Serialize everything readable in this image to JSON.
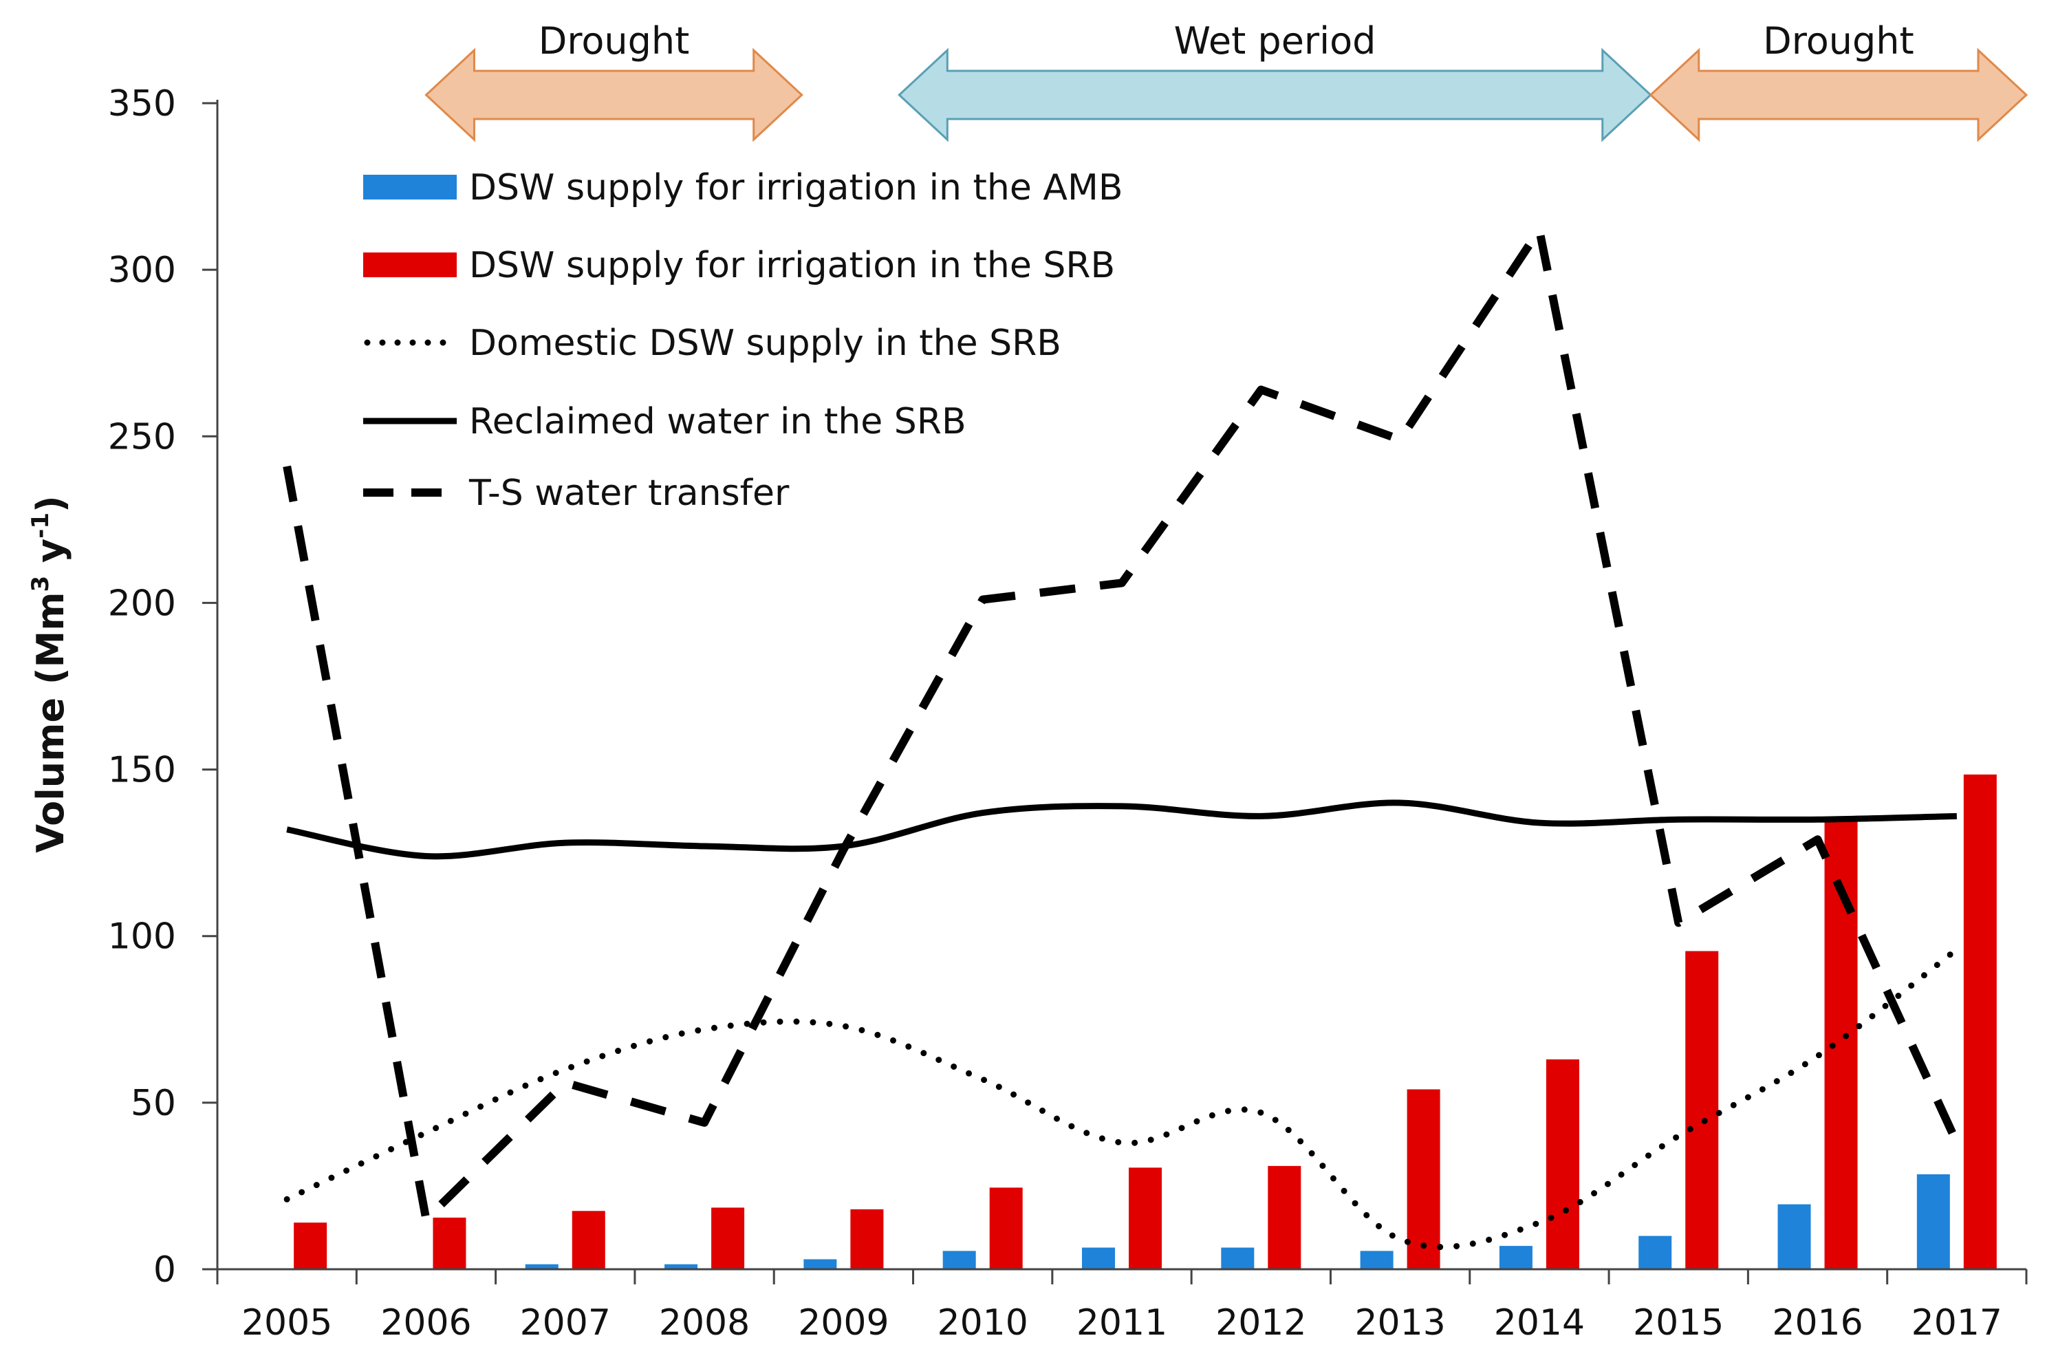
{
  "chart_data": {
    "type": "bar",
    "categories": [
      "2005",
      "2006",
      "2007",
      "2008",
      "2009",
      "2010",
      "2011",
      "2012",
      "2013",
      "2014",
      "2015",
      "2016",
      "2017"
    ],
    "ylabel": "Volume (Mm",
    "ylabel_sup": "3",
    "ylabel_mid": " y",
    "ylabel_sup2": "-1",
    "ylabel_end": ")",
    "ylim": [
      0,
      350
    ],
    "yticks": [
      0,
      50,
      100,
      150,
      200,
      250,
      300,
      350
    ],
    "legend_position": "top-left",
    "series": [
      {
        "name": "DSW supply for irrigation in the AMB",
        "kind": "bar",
        "color": "#1f83d9",
        "values": [
          0,
          0,
          1.5,
          1.5,
          3,
          5.5,
          6.5,
          6.5,
          5.5,
          7,
          10,
          19.5,
          28.5
        ]
      },
      {
        "name": "DSW supply for irrigation in the SRB",
        "kind": "bar",
        "color": "#e00000",
        "values": [
          14,
          15.5,
          17.5,
          18.5,
          18,
          24.5,
          30.5,
          31,
          54,
          63,
          95.5,
          134.5,
          148.5
        ]
      },
      {
        "name": "Domestic DSW supply in the SRB",
        "kind": "line",
        "style": "dotted",
        "color": "#000000",
        "values": [
          21,
          41,
          60,
          72,
          73,
          57,
          38,
          47,
          9,
          14,
          40,
          64,
          96
        ]
      },
      {
        "name": "Reclaimed water in the SRB",
        "kind": "line",
        "style": "solid",
        "color": "#000000",
        "values": [
          132,
          124,
          128,
          127,
          127,
          137,
          139,
          136,
          140,
          134,
          135,
          135,
          136
        ]
      },
      {
        "name": "T-S water transfer",
        "kind": "line",
        "style": "dashed",
        "color": "#000000",
        "values": [
          241,
          15,
          56,
          44,
          126,
          201,
          206,
          264,
          249,
          312,
          104,
          129,
          38
        ]
      }
    ],
    "annotations": [
      {
        "label": "Drought",
        "kind": "drought",
        "color": "#f2c4a2",
        "stroke": "#e0894a",
        "from_year": 2006,
        "to_year": 2008.7
      },
      {
        "label": "Wet period",
        "kind": "wet",
        "color": "#b6dde6",
        "stroke": "#5b9fb5",
        "from_year": 2009.4,
        "to_year": 2014.8
      },
      {
        "label": "Drought",
        "kind": "drought",
        "color": "#f2c4a2",
        "stroke": "#e0894a",
        "from_year": 2014.8,
        "to_year": 2017.5
      }
    ]
  }
}
